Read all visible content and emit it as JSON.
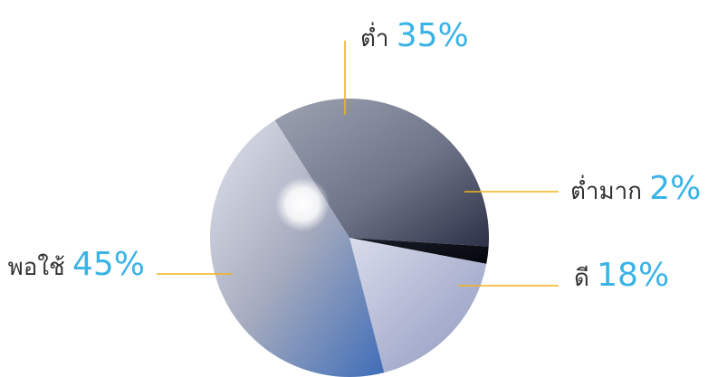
{
  "chart_data": {
    "type": "pie",
    "title": "",
    "slices": [
      {
        "label": "ต่ำ",
        "value": 35,
        "value_label": "35%"
      },
      {
        "label": "ต่ำมาก",
        "value": 2,
        "value_label": "2%"
      },
      {
        "label": "ดี",
        "value": 18,
        "value_label": "18%"
      },
      {
        "label": "พอใช้",
        "value": 45,
        "value_label": "45%"
      }
    ],
    "colors": {
      "value_text": "#3ab3e6",
      "leader_line": "#f2b31c"
    }
  }
}
